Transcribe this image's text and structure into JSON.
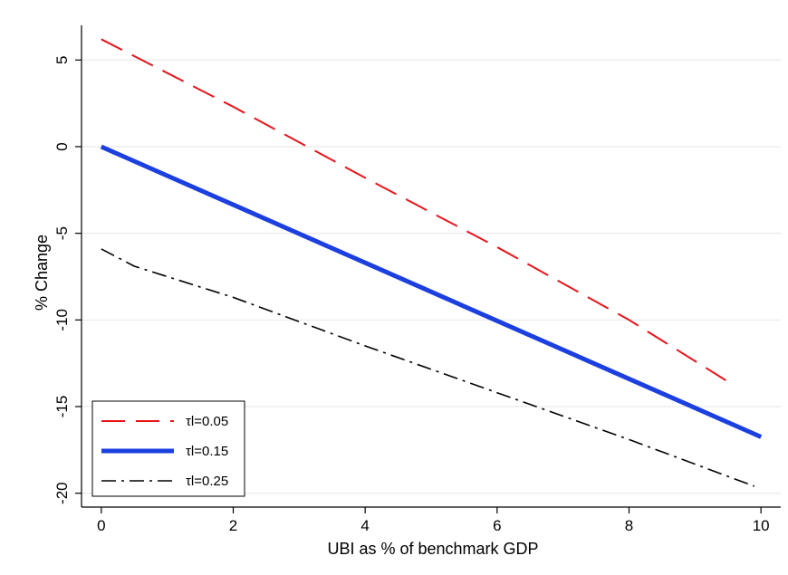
{
  "chart_data": {
    "type": "line",
    "xlabel": "UBI as % of benchmark GDP",
    "ylabel": "% Change",
    "xlim": [
      -0.3,
      10.3
    ],
    "ylim": [
      -20.8,
      7.0
    ],
    "xticks": [
      0,
      2,
      4,
      6,
      8,
      10
    ],
    "yticks": [
      5,
      0,
      -5,
      -10,
      -15,
      -20
    ],
    "grid": "horizontal",
    "legend_position": "bottom-left",
    "series": [
      {
        "name": "τl=0.05",
        "color": "#e8141b",
        "style": "long-dash",
        "x": [
          0,
          2,
          4,
          6,
          8,
          9.6
        ],
        "y": [
          6.2,
          2.3,
          -1.8,
          -5.8,
          -10.0,
          -13.8
        ]
      },
      {
        "name": "τl=0.15",
        "color": "#1c3fe0",
        "style": "solid-thick",
        "x": [
          0,
          2,
          4,
          6,
          8,
          10
        ],
        "y": [
          0.0,
          -3.35,
          -6.7,
          -10.05,
          -13.4,
          -16.75
        ]
      },
      {
        "name": "τl=0.25",
        "color": "#000000",
        "style": "dash-dot",
        "x": [
          0,
          0.5,
          2,
          4,
          6,
          8,
          9.9
        ],
        "y": [
          -5.9,
          -6.9,
          -8.7,
          -11.5,
          -14.2,
          -16.9,
          -19.6
        ]
      }
    ]
  }
}
